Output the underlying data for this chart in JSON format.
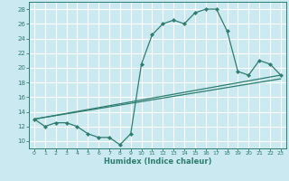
{
  "title": "",
  "xlabel": "Humidex (Indice chaleur)",
  "bg_color": "#cbe9f0",
  "grid_color": "#ffffff",
  "line_color": "#2e7d6e",
  "xlim": [
    -0.5,
    23.5
  ],
  "ylim": [
    9.0,
    29.0
  ],
  "xticks": [
    0,
    1,
    2,
    3,
    4,
    5,
    6,
    7,
    8,
    9,
    10,
    11,
    12,
    13,
    14,
    15,
    16,
    17,
    18,
    19,
    20,
    21,
    22,
    23
  ],
  "yticks": [
    10,
    12,
    14,
    16,
    18,
    20,
    22,
    24,
    26,
    28
  ],
  "line1_x": [
    0,
    1,
    2,
    3,
    4,
    5,
    6,
    7,
    8,
    9,
    10,
    11,
    12,
    13,
    14,
    15,
    16,
    17,
    18,
    19,
    20,
    21,
    22,
    23
  ],
  "line1_y": [
    13,
    12,
    12.5,
    12.5,
    12,
    11,
    10.5,
    10.5,
    9.5,
    11,
    20.5,
    24.5,
    26,
    26.5,
    26,
    27.5,
    28,
    28,
    25,
    19.5,
    19,
    21,
    20.5,
    19
  ],
  "line2_x": [
    0,
    23
  ],
  "line2_y": [
    13,
    19
  ],
  "line3_x": [
    0,
    23
  ],
  "line3_y": [
    13,
    18.5
  ]
}
